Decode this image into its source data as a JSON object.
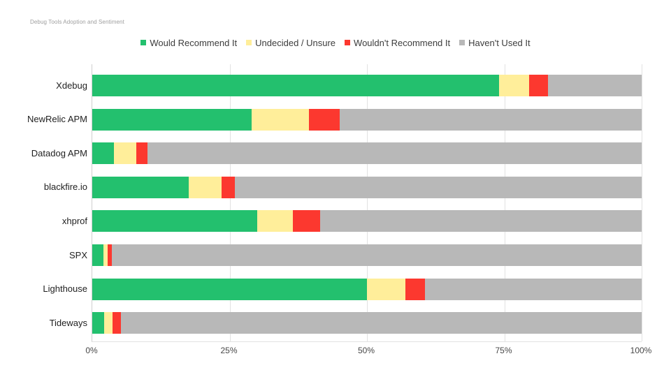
{
  "page": {
    "caption": "Debug Tools Adoption and Sentiment"
  },
  "chart_data": {
    "type": "bar",
    "orientation": "horizontal",
    "stacked": true,
    "title": "Debug Tools Adoption and Sentiment",
    "categories": [
      "Xdebug",
      "NewRelic APM",
      "Datadog APM",
      "blackfire.io",
      "xhprof",
      "SPX",
      "Lighthouse",
      "Tideways"
    ],
    "series": [
      {
        "name": "Would Recommend It",
        "color": "#23c06e",
        "values": [
          74,
          29,
          4,
          17.5,
          30,
          2,
          50,
          2.1
        ]
      },
      {
        "name": "Undecided / Unsure",
        "color": "#ffee9a",
        "values": [
          5.5,
          10.5,
          4,
          6,
          6.5,
          0.8,
          7,
          1.6
        ]
      },
      {
        "name": "Wouldn't Recommend It",
        "color": "#fc382f",
        "values": [
          3.5,
          5.5,
          2,
          2.5,
          5,
          0.7,
          3.5,
          1.5
        ]
      },
      {
        "name": "Haven't Used It",
        "color": "#b8b8b8",
        "values": [
          17,
          55,
          90,
          74,
          58.5,
          96.5,
          39.5,
          94.8
        ]
      }
    ],
    "x_ticks": [
      "0%",
      "25%",
      "50%",
      "75%",
      "100%"
    ],
    "xlim": [
      0,
      100
    ],
    "xlabel": "",
    "ylabel": "",
    "legend_position": "top",
    "grid": true
  },
  "style_colors": {
    "grid": "#e2e2e2",
    "axis": "#cfcfcf",
    "caption_text": "#9e9e9e",
    "label_text": "#1f1f1f",
    "tick_text": "#474747"
  }
}
